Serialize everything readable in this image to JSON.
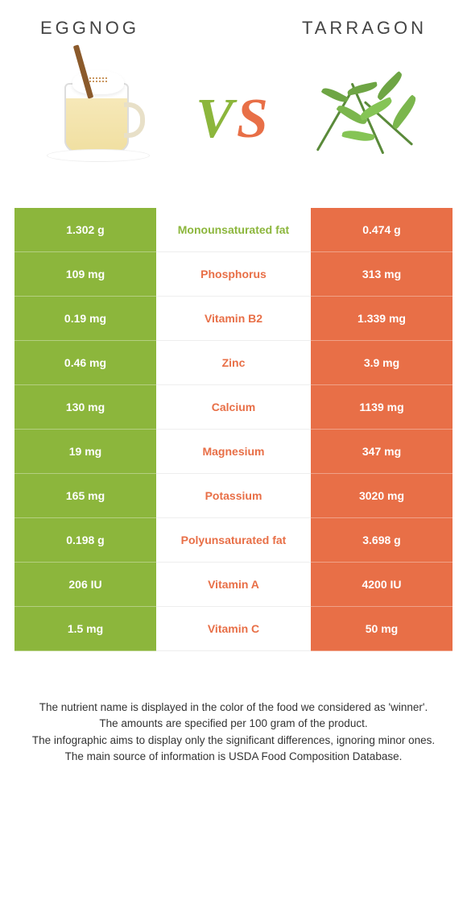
{
  "header": {
    "left_title": "EGGNOG",
    "right_title": "TARRAGON"
  },
  "vs": {
    "v": "V",
    "s": "S"
  },
  "colors": {
    "left": "#8cb63c",
    "right": "#e86f47",
    "mid_left_text": "#8cb63c",
    "mid_right_text": "#e86f47",
    "header_text": "#444444",
    "footer_text": "#333333",
    "bg": "#ffffff"
  },
  "table": {
    "rows": [
      {
        "left": "1.302 g",
        "label": "Monounsaturated fat",
        "right": "0.474 g",
        "winner": "left"
      },
      {
        "left": "109 mg",
        "label": "Phosphorus",
        "right": "313 mg",
        "winner": "right"
      },
      {
        "left": "0.19 mg",
        "label": "Vitamin B2",
        "right": "1.339 mg",
        "winner": "right"
      },
      {
        "left": "0.46 mg",
        "label": "Zinc",
        "right": "3.9 mg",
        "winner": "right"
      },
      {
        "left": "130 mg",
        "label": "Calcium",
        "right": "1139 mg",
        "winner": "right"
      },
      {
        "left": "19 mg",
        "label": "Magnesium",
        "right": "347 mg",
        "winner": "right"
      },
      {
        "left": "165 mg",
        "label": "Potassium",
        "right": "3020 mg",
        "winner": "right"
      },
      {
        "left": "0.198 g",
        "label": "Polyunsaturated fat",
        "right": "3.698 g",
        "winner": "right"
      },
      {
        "left": "206 IU",
        "label": "Vitamin A",
        "right": "4200 IU",
        "winner": "right"
      },
      {
        "left": "1.5 mg",
        "label": "Vitamin C",
        "right": "50 mg",
        "winner": "right"
      }
    ]
  },
  "footer": {
    "line1": "The nutrient name is displayed in the color of the food we considered as 'winner'.",
    "line2": "The amounts are specified per 100 gram of the product.",
    "line3": "The infographic aims to display only the significant differences, ignoring minor ones.",
    "line4": "The main source of information is USDA Food Composition Database."
  },
  "fonts": {
    "header_size": 22,
    "vs_size": 70,
    "cell_size": 14,
    "footer_size": 13.5
  }
}
